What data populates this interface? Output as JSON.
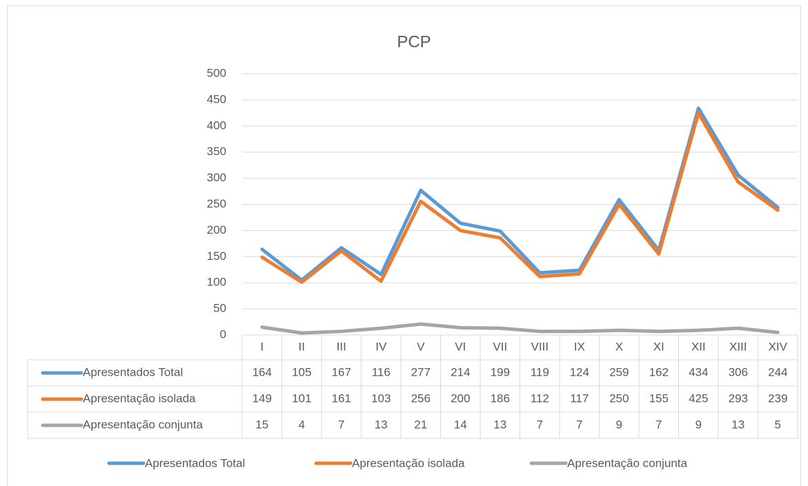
{
  "chart_data": {
    "type": "line",
    "title": "PCP",
    "categories": [
      "I",
      "II",
      "III",
      "IV",
      "V",
      "VI",
      "VII",
      "VIII",
      "IX",
      "X",
      "XI",
      "XII",
      "XIII",
      "XIV"
    ],
    "series": [
      {
        "name": "Apresentados Total",
        "color": "#5b9bd5",
        "values": [
          164,
          105,
          167,
          116,
          277,
          214,
          199,
          119,
          124,
          259,
          162,
          434,
          306,
          244
        ]
      },
      {
        "name": "Apresentação isolada",
        "color": "#ed7d31",
        "values": [
          149,
          101,
          161,
          103,
          256,
          200,
          186,
          112,
          117,
          250,
          155,
          425,
          293,
          239
        ]
      },
      {
        "name": "Apresentação conjunta",
        "color": "#a5a5a5",
        "values": [
          15,
          4,
          7,
          13,
          21,
          14,
          13,
          7,
          7,
          9,
          7,
          9,
          13,
          5
        ]
      }
    ],
    "ylim": [
      0,
      500
    ],
    "yticks": [
      0,
      50,
      100,
      150,
      200,
      250,
      300,
      350,
      400,
      450,
      500
    ],
    "grid": true,
    "legend": "bottom"
  }
}
